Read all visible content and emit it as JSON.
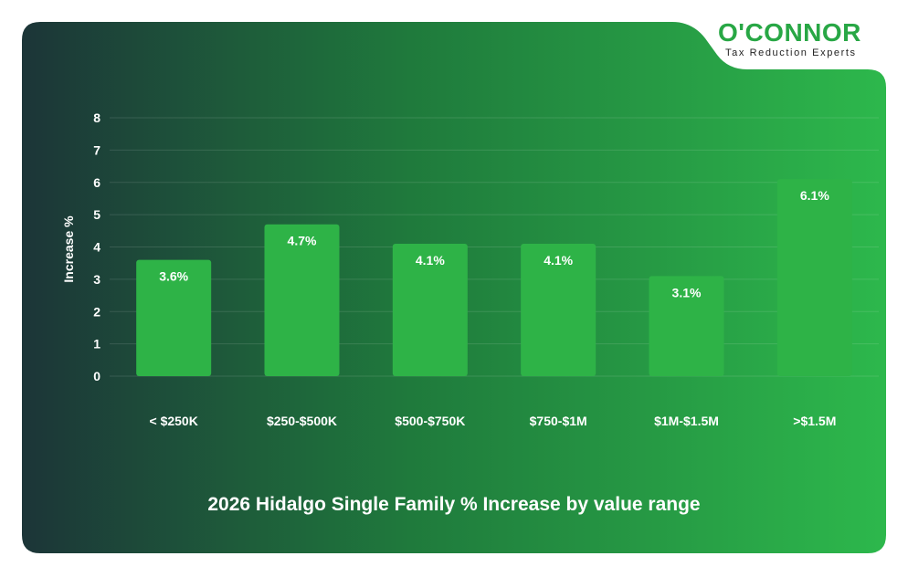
{
  "brand": {
    "name": "O'CONNOR",
    "tagline": "Tax Reduction Experts"
  },
  "colors": {
    "background_dark": "#1c3538",
    "background_light": "#2db84c",
    "bar": "#2eb347",
    "logo_green": "#28a745"
  },
  "chart_data": {
    "type": "bar",
    "title": "2026 Hidalgo Single Family % Increase by value range",
    "xlabel": "",
    "ylabel": "Increase %",
    "ylim": [
      0,
      8
    ],
    "yticks": [
      "0",
      "1",
      "2",
      "3",
      "4",
      "5",
      "6",
      "7",
      "8"
    ],
    "categories": [
      "< $250K",
      "$250-$500K",
      "$500-$750K",
      "$750-$1M",
      "$1M-$1.5M",
      ">$1.5M"
    ],
    "values": [
      3.6,
      4.7,
      4.1,
      4.1,
      3.1,
      6.1
    ],
    "data_labels": [
      "3.6%",
      "4.7%",
      "4.1%",
      "4.1%",
      "3.1%",
      "6.1%"
    ],
    "grid": true,
    "legend": "none"
  }
}
